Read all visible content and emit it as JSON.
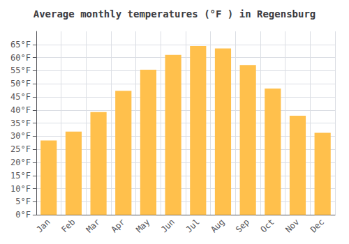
{
  "chart_data": {
    "type": "bar",
    "title": "Average monthly temperatures (°F ) in Regensburg",
    "categories": [
      "Jan",
      "Feb",
      "Mar",
      "Apr",
      "May",
      "Jun",
      "Jul",
      "Aug",
      "Sep",
      "Oct",
      "Nov",
      "Dec"
    ],
    "values": [
      28.4,
      31.8,
      39.2,
      47.3,
      55.4,
      61.0,
      64.4,
      63.5,
      57.2,
      48.2,
      37.8,
      31.3
    ],
    "color": "#FFC04C",
    "ylim": [
      0,
      70
    ],
    "yticks": [
      {
        "value": 0,
        "label": "0°F"
      },
      {
        "value": 5,
        "label": "5°F"
      },
      {
        "value": 10,
        "label": "10°F"
      },
      {
        "value": 15,
        "label": "15°F"
      },
      {
        "value": 20,
        "label": "20°F"
      },
      {
        "value": 25,
        "label": "25°F"
      },
      {
        "value": 30,
        "label": "30°F"
      },
      {
        "value": 35,
        "label": "35°F"
      },
      {
        "value": 40,
        "label": "40°F"
      },
      {
        "value": 45,
        "label": "45°F"
      },
      {
        "value": 50,
        "label": "50°F"
      },
      {
        "value": 55,
        "label": "55°F"
      },
      {
        "value": 60,
        "label": "60°F"
      },
      {
        "value": 65,
        "label": "65°F"
      }
    ],
    "grid": true
  }
}
